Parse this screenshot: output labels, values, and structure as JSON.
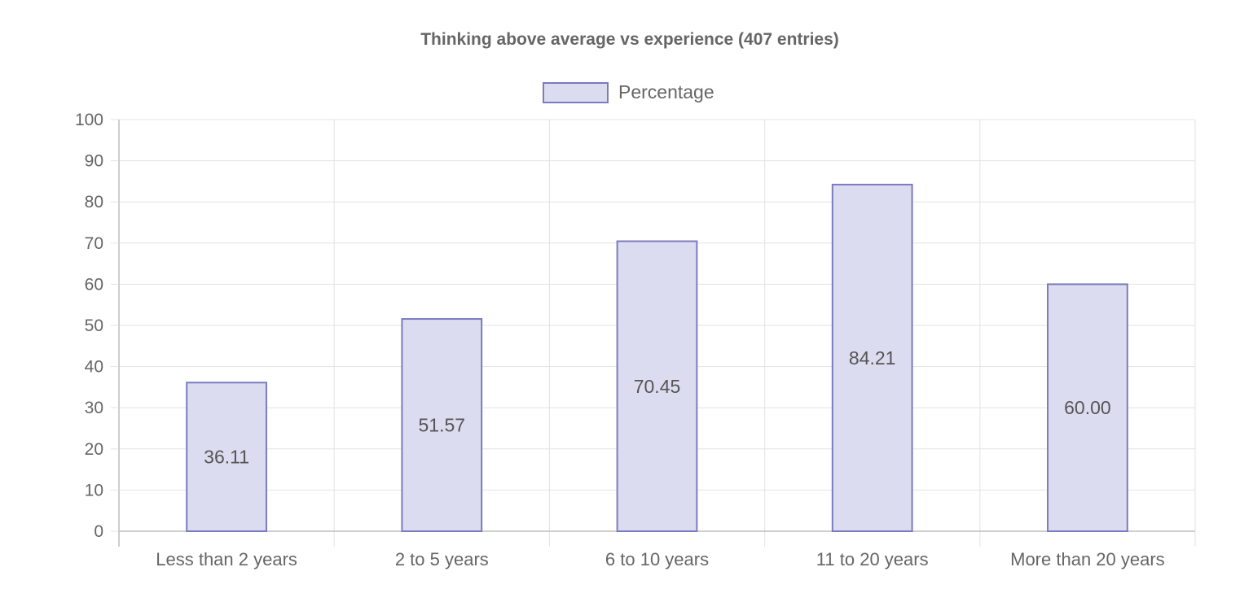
{
  "chart_data": {
    "type": "bar",
    "title": "Thinking above average vs experience (407 entries)",
    "categories": [
      "Less than 2 years",
      "2 to 5 years",
      "6 to 10 years",
      "11 to 20 years",
      "More than 20 years"
    ],
    "series": [
      {
        "name": "Percentage",
        "values": [
          36.11,
          51.57,
          70.45,
          84.21,
          60.0
        ],
        "data_labels": [
          "36.11",
          "51.57",
          "70.45",
          "84.21",
          "60.00"
        ],
        "fill_color": "#dcdcf0",
        "border_color": "#7b7bbf"
      }
    ],
    "ylim": [
      0,
      100
    ],
    "y_ticks": [
      0,
      10,
      20,
      30,
      40,
      50,
      60,
      70,
      80,
      90,
      100
    ],
    "grid": true,
    "legend_position": "top-center"
  }
}
